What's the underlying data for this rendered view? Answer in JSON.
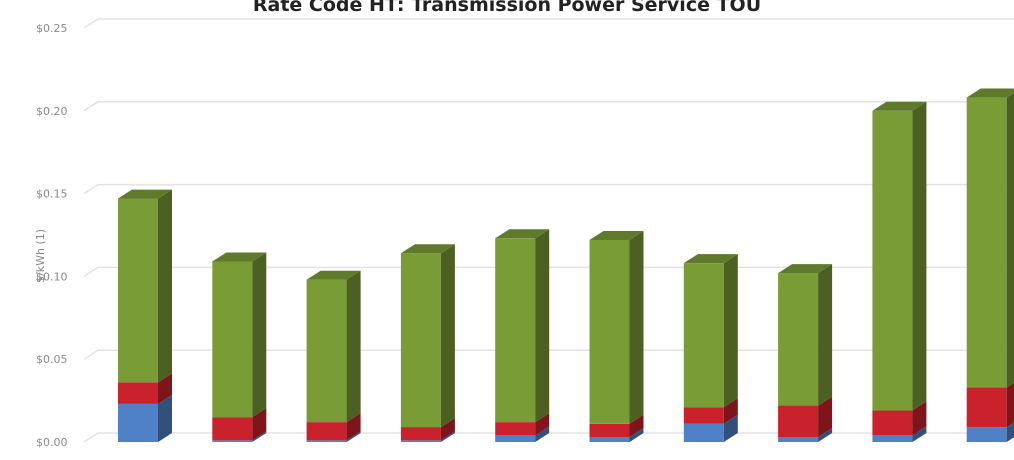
{
  "chart_data": {
    "type": "bar",
    "stacked": true,
    "three_d": true,
    "title": "Rate Code HT: Transmission Power Service TOU",
    "ylabel": "$/kWh (1)",
    "xlabel": "",
    "ylim": [
      0,
      0.25
    ],
    "yticks": [
      "$0.00",
      "$0.05",
      "$0.10",
      "$0.15",
      "$0.20",
      "$0.25"
    ],
    "grid": true,
    "categories": [
      "",
      "",
      "",
      "",
      "",
      "",
      "",
      "",
      "",
      ""
    ],
    "series": [
      {
        "color": "#4f81c7",
        "values": [
          0.023,
          0.001,
          0.001,
          0.001,
          0.004,
          0.003,
          0.011,
          0.003,
          0.004,
          0.009
        ]
      },
      {
        "color": "#c9222c",
        "values": [
          0.013,
          0.014,
          0.011,
          0.008,
          0.008,
          0.008,
          0.01,
          0.019,
          0.015,
          0.024
        ]
      },
      {
        "color": "#7a9c36",
        "values": [
          0.111,
          0.094,
          0.086,
          0.105,
          0.111,
          0.111,
          0.087,
          0.08,
          0.181,
          0.175
        ]
      }
    ]
  }
}
